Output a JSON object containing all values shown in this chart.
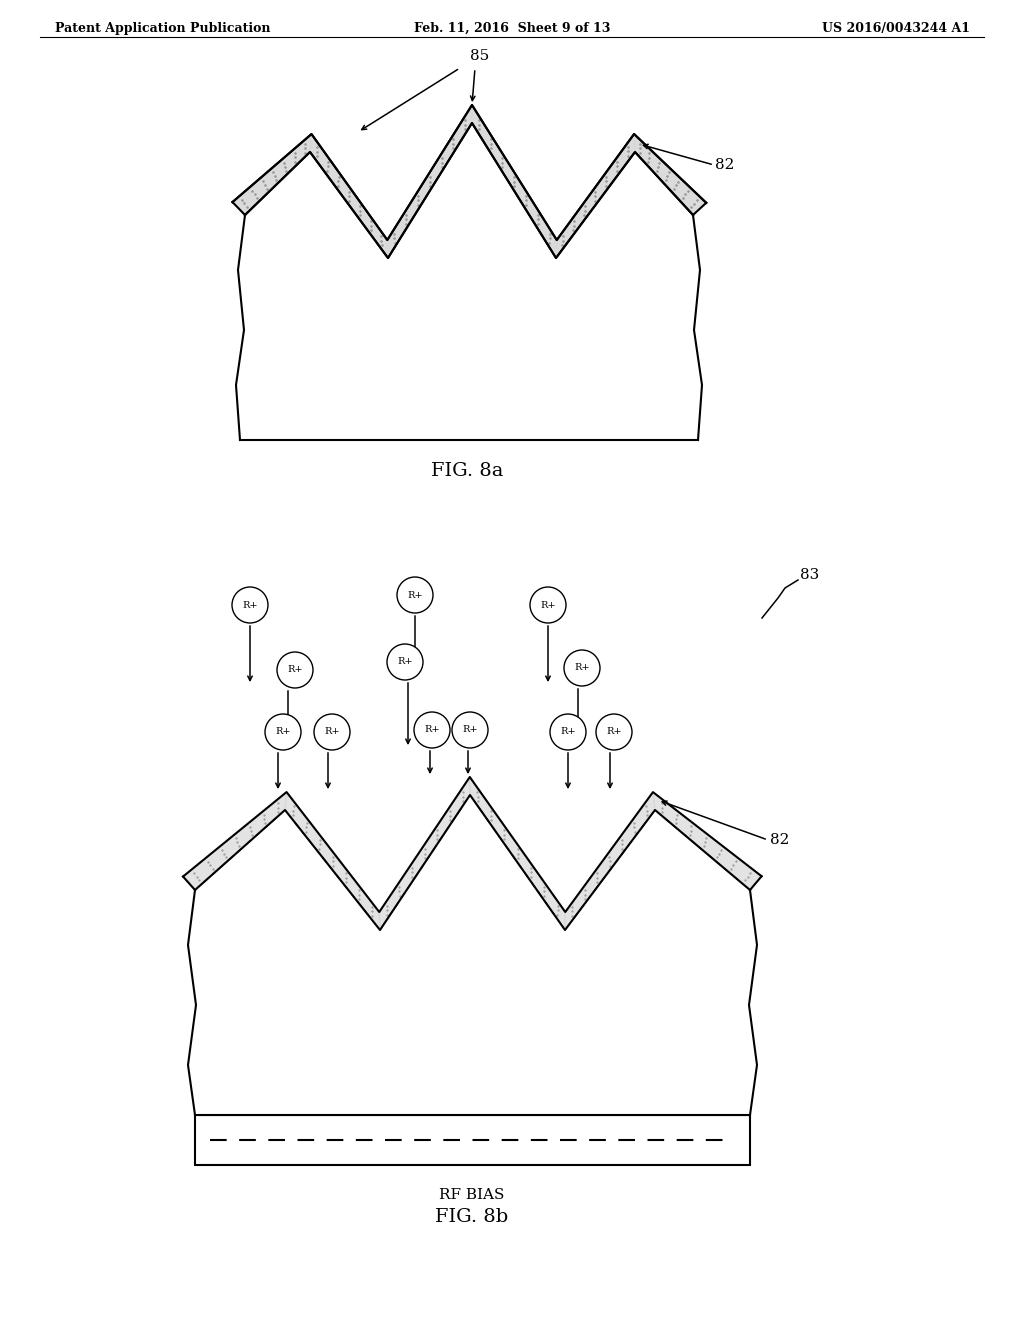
{
  "header_left": "Patent Application Publication",
  "header_center": "Feb. 11, 2016  Sheet 9 of 13",
  "header_right": "US 2016/0043244 A1",
  "fig8a_label": "FIG. 8a",
  "fig8b_label": "FIG. 8b",
  "label_85": "85",
  "label_82a": "82",
  "label_82b": "82",
  "label_83": "83",
  "label_rfbias": "RF BIAS",
  "background": "#ffffff",
  "line_color": "#000000",
  "stipple_color": "#cccccc"
}
